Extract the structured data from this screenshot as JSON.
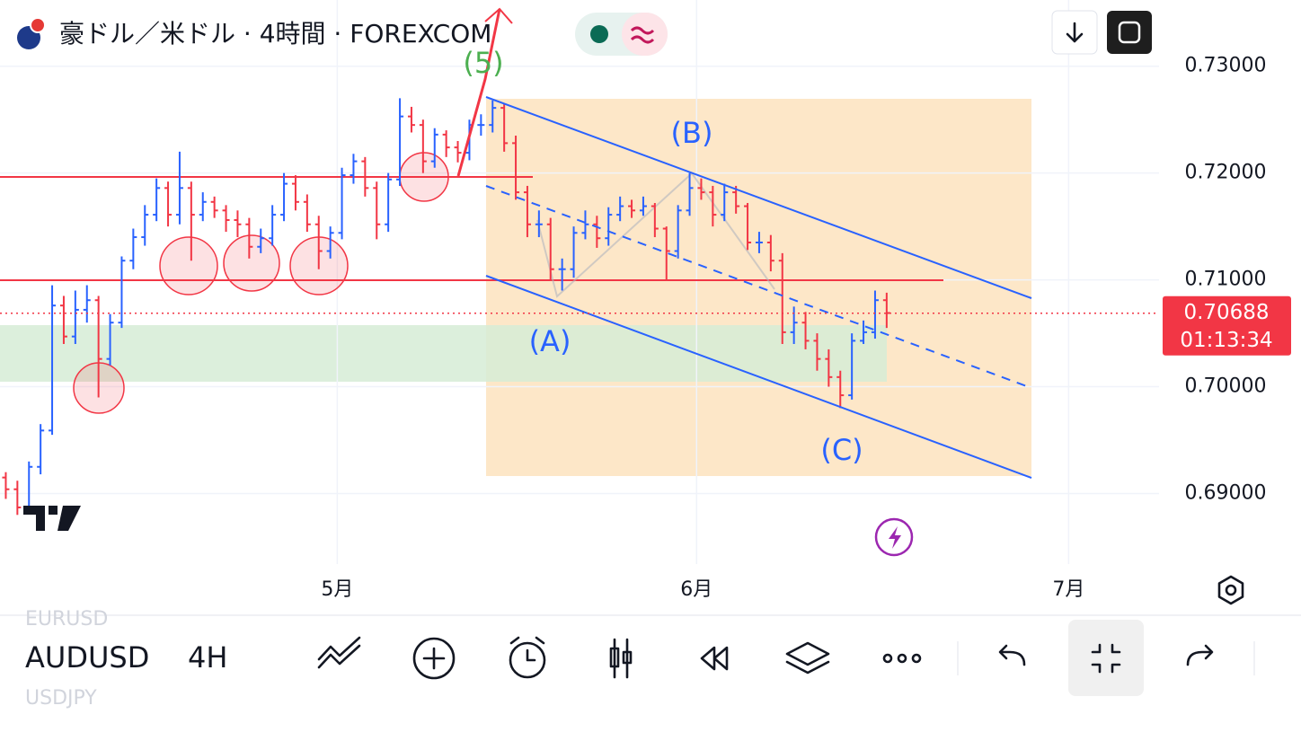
{
  "chart_data": {
    "type": "ohlc",
    "title": "豪ドル／米ドル · 4時間 · FOREXCOM",
    "up_color": "#2962ff",
    "down_color": "#f23645",
    "open": [
      0.6915,
      0.6904,
      0.6887,
      0.6925,
      0.6959,
      0.7076,
      0.7047,
      0.7072,
      0.7081,
      0.7026,
      0.706,
      0.7118,
      0.714,
      0.7161,
      0.7186,
      0.7161,
      0.7186,
      0.7161,
      0.7173,
      0.7165,
      0.7156,
      0.7152,
      0.7131,
      0.7139,
      0.7161,
      0.719,
      0.7173,
      0.7152,
      0.7127,
      0.7144,
      0.7198,
      0.7211,
      0.7186,
      0.7152,
      0.7194,
      0.7253,
      0.7245,
      0.7211,
      0.7236,
      0.7224,
      0.7219,
      0.7245,
      0.7245,
      0.7261,
      0.7228,
      0.7182,
      0.7152,
      0.7152,
      0.711,
      0.711,
      0.7144,
      0.7152,
      0.7139,
      0.7161,
      0.7169,
      0.7165,
      0.7169,
      0.7148,
      0.7127,
      0.7165,
      0.7186,
      0.7182,
      0.7161,
      0.7182,
      0.7169,
      0.7135,
      0.7135,
      0.7118,
      0.7051,
      0.706,
      0.7043,
      0.7026,
      0.7009,
      0.6992,
      0.7043,
      0.7051,
      0.7081
    ],
    "high": [
      0.692,
      0.6912,
      0.693,
      0.6965,
      0.7095,
      0.7085,
      0.709,
      0.7095,
      0.7085,
      0.7068,
      0.7122,
      0.7148,
      0.717,
      0.7195,
      0.7192,
      0.722,
      0.7192,
      0.7182,
      0.7178,
      0.717,
      0.7165,
      0.7158,
      0.7148,
      0.717,
      0.72,
      0.7198,
      0.718,
      0.716,
      0.715,
      0.7205,
      0.7218,
      0.7215,
      0.7192,
      0.72,
      0.727,
      0.7262,
      0.725,
      0.7242,
      0.724,
      0.723,
      0.725,
      0.7255,
      0.7268,
      0.7265,
      0.7235,
      0.7188,
      0.7165,
      0.7158,
      0.712,
      0.715,
      0.7165,
      0.716,
      0.7168,
      0.7178,
      0.7175,
      0.7178,
      0.7172,
      0.715,
      0.717,
      0.72,
      0.7195,
      0.7188,
      0.719,
      0.7188,
      0.7172,
      0.7145,
      0.7142,
      0.7125,
      0.7075,
      0.707,
      0.705,
      0.7035,
      0.7015,
      0.705,
      0.7062,
      0.709,
      0.7088
    ],
    "low": [
      0.6895,
      0.688,
      0.6882,
      0.6918,
      0.6955,
      0.704,
      0.704,
      0.706,
      0.699,
      0.702,
      0.7055,
      0.711,
      0.7132,
      0.7155,
      0.715,
      0.7152,
      0.7118,
      0.7155,
      0.7158,
      0.7145,
      0.714,
      0.712,
      0.7125,
      0.7132,
      0.7155,
      0.7165,
      0.7145,
      0.711,
      0.712,
      0.7138,
      0.719,
      0.7178,
      0.7138,
      0.7145,
      0.7188,
      0.7238,
      0.72,
      0.7205,
      0.7215,
      0.721,
      0.7212,
      0.7235,
      0.7238,
      0.722,
      0.7175,
      0.714,
      0.714,
      0.71,
      0.709,
      0.7102,
      0.7138,
      0.713,
      0.7132,
      0.7155,
      0.7158,
      0.716,
      0.714,
      0.71,
      0.712,
      0.716,
      0.7175,
      0.715,
      0.7155,
      0.7162,
      0.7128,
      0.7125,
      0.7108,
      0.704,
      0.704,
      0.7035,
      0.7015,
      0.7,
      0.698,
      0.6988,
      0.704,
      0.7045,
      0.7055
    ],
    "close": [
      0.6904,
      0.6887,
      0.6925,
      0.6959,
      0.7076,
      0.7047,
      0.7072,
      0.7081,
      0.7026,
      0.706,
      0.7118,
      0.714,
      0.7161,
      0.7186,
      0.7161,
      0.7186,
      0.7161,
      0.7173,
      0.7165,
      0.7156,
      0.7152,
      0.7131,
      0.7139,
      0.7161,
      0.719,
      0.7173,
      0.7152,
      0.7127,
      0.7144,
      0.7198,
      0.7211,
      0.7186,
      0.7152,
      0.7194,
      0.7253,
      0.7245,
      0.7211,
      0.7236,
      0.7224,
      0.7219,
      0.7245,
      0.7245,
      0.7261,
      0.7228,
      0.7182,
      0.7152,
      0.7152,
      0.711,
      0.711,
      0.7144,
      0.7152,
      0.7139,
      0.7161,
      0.7169,
      0.7165,
      0.7169,
      0.7148,
      0.7127,
      0.7165,
      0.7186,
      0.7182,
      0.7161,
      0.7182,
      0.7169,
      0.7135,
      0.7135,
      0.7118,
      0.7051,
      0.706,
      0.7043,
      0.7026,
      0.7009,
      0.6992,
      0.7043,
      0.7051,
      0.7081,
      0.7069
    ],
    "xlim": [
      -0.5,
      99.5
    ],
    "xticks": [
      {
        "value": 28.6,
        "label": "5月"
      },
      {
        "value": 59.6,
        "label": "6月"
      },
      {
        "value": 91.7,
        "label": "7月"
      }
    ],
    "ylim": [
      0.6834,
      0.7362
    ],
    "yticks": [
      {
        "value": 0.73,
        "label": "0.73000"
      },
      {
        "value": 0.72,
        "label": "0.72000"
      },
      {
        "value": 0.71,
        "label": "0.71000"
      },
      {
        "value": 0.7,
        "label": "0.70000"
      },
      {
        "value": 0.69,
        "label": "0.69000"
      }
    ],
    "grid": true,
    "last_price": {
      "value": 0.70688,
      "label": "0.70688"
    },
    "countdown": "01:13:34",
    "annotations": [
      "(5)",
      "(A)",
      "(B)",
      "(C)"
    ]
  },
  "toolbar": {
    "symbol": "AUDUSD",
    "interval": "4H",
    "symbol_above": "EURUSD",
    "symbol_below": "USDJPY"
  }
}
